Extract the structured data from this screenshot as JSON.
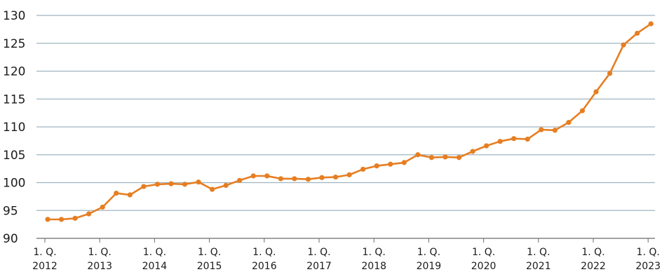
{
  "chart_data": {
    "type": "line",
    "title": "",
    "xlabel": "",
    "ylabel": "",
    "ylim": [
      90,
      130
    ],
    "y_ticks": [
      90,
      95,
      100,
      105,
      110,
      115,
      120,
      125,
      130
    ],
    "grid": "horizontal",
    "colors": {
      "line": "#e67e22",
      "grid": "#9fb4c0",
      "axis": "#6b6b6b",
      "text": "#1a1a1a"
    },
    "x_tick_labels": [
      {
        "line1": "1. Q.",
        "line2": "2012"
      },
      {
        "line1": "1. Q.",
        "line2": "2013"
      },
      {
        "line1": "1. Q.",
        "line2": "2014"
      },
      {
        "line1": "1. Q.",
        "line2": "2015"
      },
      {
        "line1": "1. Q.",
        "line2": "2016"
      },
      {
        "line1": "1. Q.",
        "line2": "2017"
      },
      {
        "line1": "1. Q.",
        "line2": "2018"
      },
      {
        "line1": "1. Q.",
        "line2": "2019"
      },
      {
        "line1": "1. Q.",
        "line2": "2020"
      },
      {
        "line1": "1. Q.",
        "line2": "2021"
      },
      {
        "line1": "1. Q.",
        "line2": "2022"
      },
      {
        "line1": "1. Q.",
        "line2": "2023"
      }
    ],
    "x": [
      "2012 Q1",
      "2012 Q2",
      "2012 Q3",
      "2012 Q4",
      "2013 Q1",
      "2013 Q2",
      "2013 Q3",
      "2013 Q4",
      "2014 Q1",
      "2014 Q2",
      "2014 Q3",
      "2014 Q4",
      "2015 Q1",
      "2015 Q2",
      "2015 Q3",
      "2015 Q4",
      "2016 Q1",
      "2016 Q2",
      "2016 Q3",
      "2016 Q4",
      "2017 Q1",
      "2017 Q2",
      "2017 Q3",
      "2017 Q4",
      "2018 Q1",
      "2018 Q2",
      "2018 Q3",
      "2018 Q4",
      "2019 Q1",
      "2019 Q2",
      "2019 Q3",
      "2019 Q4",
      "2020 Q1",
      "2020 Q2",
      "2020 Q3",
      "2020 Q4",
      "2021 Q1",
      "2021 Q2",
      "2021 Q3",
      "2021 Q4",
      "2022 Q1",
      "2022 Q2",
      "2022 Q3",
      "2022 Q4",
      "2023 Q1"
    ],
    "series": [
      {
        "values": [
          93.4,
          93.4,
          93.6,
          94.4,
          95.6,
          98.1,
          97.8,
          99.3,
          99.7,
          99.8,
          99.7,
          100.1,
          98.8,
          99.5,
          100.4,
          101.2,
          101.2,
          100.7,
          100.7,
          100.6,
          100.9,
          101.0,
          101.4,
          102.4,
          103.0,
          103.3,
          103.6,
          105.0,
          104.5,
          104.6,
          104.5,
          105.6,
          106.6,
          107.4,
          107.9,
          107.8,
          109.5,
          109.4,
          110.8,
          112.9,
          116.3,
          119.6,
          124.7,
          126.8,
          128.5
        ]
      }
    ]
  }
}
